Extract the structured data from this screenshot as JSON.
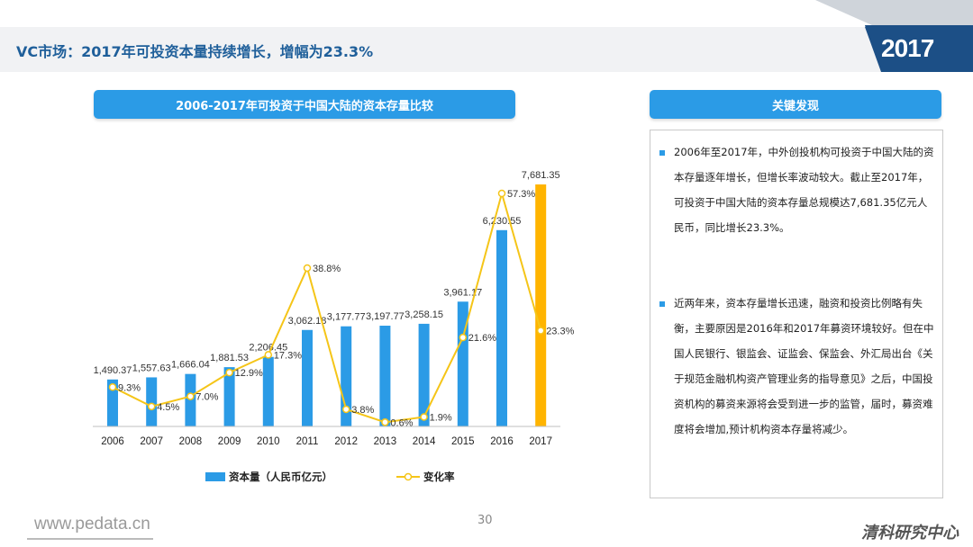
{
  "slide": {
    "title": "VC市场：2017年可投资本量持续增长，增幅为23.3%",
    "year_badge": "2017",
    "chart_header": "2006-2017年可投资于中国大陆的资本存量比较",
    "findings_header": "关键发现",
    "footer_url": "www.pedata.cn",
    "page_number": "30",
    "brand": "清科研究中心",
    "colors": {
      "bar": "#2b9be6",
      "bar_highlight": "#ffb400",
      "line": "#f5c518",
      "title": "#1f5f9a"
    }
  },
  "findings": [
    "2006年至2017年，中外创投机构可投资于中国大陆的资本存量逐年增长，但增长率波动较大。截止至2017年，可投资于中国大陆的资本存量总规模达7,681.35亿元人民币，同比增长23.3%。",
    "近两年来，资本存量增长迅速，融资和投资比例略有失衡，主要原因是2016年和2017年募资环境较好。但在中国人民银行、银监会、证监会、保监会、外汇局出台《关于规范金融机构资产管理业务的指导意见》之后，中国投资机构的募资来源将会受到进一步的监管，届时，募资难度将会增加,预计机构资本存量将减少。"
  ],
  "chart_data": {
    "type": "bar",
    "categories": [
      "2006",
      "2007",
      "2008",
      "2009",
      "2010",
      "2011",
      "2012",
      "2013",
      "2014",
      "2015",
      "2016",
      "2017"
    ],
    "series": [
      {
        "name": "资本量（人民币亿元）",
        "type": "bar",
        "values": [
          1490.37,
          1557.63,
          1666.04,
          1881.53,
          2206.45,
          3062.18,
          3177.77,
          3197.77,
          3258.15,
          3961.17,
          6230.55,
          7681.35
        ],
        "labels": [
          "1,490.37",
          "1,557.63",
          "1,666.04",
          "1,881.53",
          "2,206.45",
          "3,062.18",
          "3,177.77",
          "3,197.77",
          "3,258.15",
          "3,961.17",
          "6,230.55",
          "7,681.35"
        ]
      },
      {
        "name": "变化率",
        "type": "line",
        "values": [
          9.3,
          4.5,
          7.0,
          12.9,
          17.3,
          38.8,
          3.8,
          0.6,
          1.9,
          21.6,
          57.3,
          23.3
        ],
        "labels": [
          "9.3%",
          "4.5%",
          "7.0%",
          "12.9%",
          "17.3%",
          "38.8%",
          "3.8%",
          "0.6%",
          "1.9%",
          "21.6%",
          "57.3%",
          "23.3%"
        ]
      }
    ],
    "ylim_bar": [
      0,
      8000
    ],
    "ylim_line": [
      0,
      60
    ],
    "legend_position": "bottom"
  }
}
